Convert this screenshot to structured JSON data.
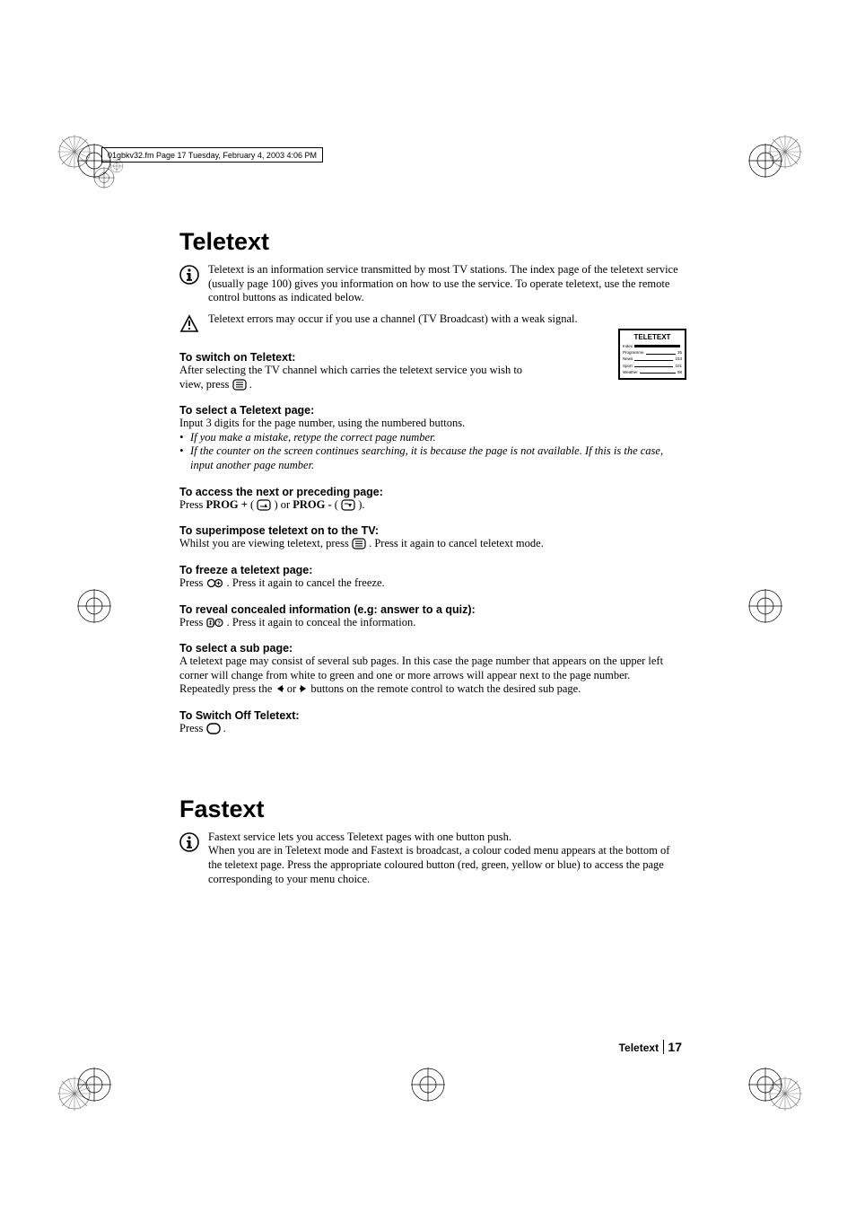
{
  "header_bar": "01gbkv32.fm  Page 17  Tuesday, February 4, 2003  4:06 PM",
  "title1": "Teletext",
  "intro1": "Teletext is an information service transmitted by most TV stations. The index page of the teletext service (usually page 100) gives you information on how to use the service. To operate teletext, use the remote control buttons as indicated below.",
  "warn1": "Teletext errors may occur if you use a channel (TV Broadcast) with a weak signal.",
  "s1_h": "To switch on Teletext:",
  "s1_p": "After selecting the TV channel which carries the teletext service you wish to view, press ",
  "s1_end": " .",
  "s2_h": "To select a Teletext page:",
  "s2_p": "Input 3 digits for the page number, using the numbered buttons.",
  "s2_b1": "If you make a mistake, retype the correct page number.",
  "s2_b2": "If the counter on the screen continues searching, it is because the page is not available. If this is the case, input another page number.",
  "s3_h": "To access the next or preceding page:",
  "s3_pre": "Press ",
  "s3_prog_plus": "PROG +",
  "s3_mid": " ( ",
  "s3_or": " ) or ",
  "s3_prog_minus": "PROG -",
  "s3_mid2": " ( ",
  "s3_end": " ).",
  "s4_h": "To superimpose teletext on to the TV:",
  "s4_p1": "Whilst you are viewing teletext, press ",
  "s4_p2": " . Press it again to cancel teletext mode.",
  "s5_h": "To freeze a teletext page:",
  "s5_p1": "Press ",
  "s5_p2": " . Press it again to cancel the freeze.",
  "s6_h": "To reveal concealed information (e.g: answer to a quiz):",
  "s6_p1": "Press ",
  "s6_p2": " . Press it again to conceal the information.",
  "s7_h": "To select a sub page:",
  "s7_p1": "A teletext page may consist of several sub pages. In this case the page number that appears on the upper left corner will change from white to green and one or more arrows will appear next to the page number. Repeatedly press the ",
  "s7_or": " or ",
  "s7_p2": " buttons on the remote control to watch the desired sub page.",
  "s8_h": "To Switch Off Teletext:",
  "s8_p1": "Press ",
  "s8_p2": " .",
  "title2": "Fastext",
  "intro2": "Fastext service lets you access Teletext pages with one button push.\nWhen you are in Teletext mode and Fastext is broadcast, a colour coded menu appears at  the bottom of the teletext page. Press the appropriate coloured button (red, green, yellow or blue) to access the page corresponding to your menu choice.",
  "tt_box": {
    "title": "TELETEXT",
    "rows": [
      {
        "label": "Index",
        "val": ""
      },
      {
        "label": "Programme",
        "val": "35"
      },
      {
        "label": "News",
        "val": "153"
      },
      {
        "label": "Sport",
        "val": "101"
      },
      {
        "label": "Weather",
        "val": "98"
      }
    ]
  },
  "footer_label": "Teletext",
  "footer_page": "17",
  "colors": {
    "text": "#000000",
    "bg": "#ffffff"
  },
  "typography": {
    "body_font": "Times New Roman",
    "heading_font": "Arial",
    "h1_size_pt": 20,
    "body_size_pt": 9.5,
    "section_h_size_pt": 9.5
  }
}
